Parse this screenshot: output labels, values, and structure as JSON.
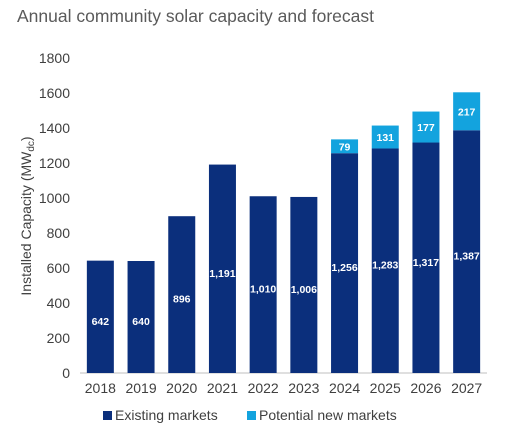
{
  "chart_data": {
    "type": "bar",
    "stacked": true,
    "title": "Annual community solar capacity and forecast",
    "ylabel": "Installed Capacity (MW",
    "ylabel_sub": "dc",
    "ylabel_close": ")",
    "xlabel": "",
    "ylim": [
      0,
      1800
    ],
    "yticks": [
      0,
      200,
      400,
      600,
      800,
      1000,
      1200,
      1400,
      1600,
      1800
    ],
    "grid": false,
    "legend_position": "bottom",
    "categories": [
      "2018",
      "2019",
      "2020",
      "2021",
      "2022",
      "2023",
      "2024",
      "2025",
      "2026",
      "2027"
    ],
    "series": [
      {
        "name": "Existing markets",
        "color": "#0b2f7c",
        "values": [
          642,
          640,
          896,
          1191,
          1010,
          1006,
          1256,
          1283,
          1317,
          1387
        ],
        "labels": [
          "642",
          "640",
          "896",
          "1,191",
          "1,010",
          "1,006",
          "1,256",
          "1,283",
          "1,317",
          "1,387"
        ]
      },
      {
        "name": "Potential new markets",
        "color": "#13a3de",
        "values": [
          0,
          0,
          0,
          0,
          0,
          0,
          79,
          131,
          177,
          217
        ],
        "labels": [
          "",
          "",
          "",
          "",
          "",
          "",
          "79",
          "131",
          "177",
          "217"
        ]
      }
    ]
  }
}
